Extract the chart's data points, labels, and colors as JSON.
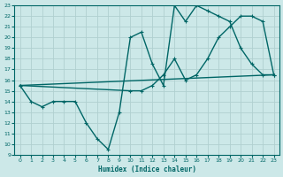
{
  "xlabel": "Humidex (Indice chaleur)",
  "background_color": "#cce8e8",
  "grid_color": "#b0d0d0",
  "line_color": "#006666",
  "xlim": [
    -0.5,
    23.5
  ],
  "ylim": [
    9,
    23
  ],
  "xticks": [
    0,
    1,
    2,
    3,
    4,
    5,
    6,
    7,
    8,
    9,
    10,
    11,
    12,
    13,
    14,
    15,
    16,
    17,
    18,
    19,
    20,
    21,
    22,
    23
  ],
  "yticks": [
    9,
    10,
    11,
    12,
    13,
    14,
    15,
    16,
    17,
    18,
    19,
    20,
    21,
    22,
    23
  ],
  "line1_x": [
    0,
    1,
    2,
    3,
    4,
    5,
    6,
    7,
    8,
    9,
    10,
    11,
    12,
    13,
    14,
    15,
    16,
    17,
    18,
    19,
    20,
    21,
    22,
    23
  ],
  "line1_y": [
    15.5,
    14,
    13.5,
    14,
    14,
    14,
    12,
    10.5,
    9.5,
    13,
    20,
    20.5,
    17.5,
    15.5,
    23,
    21.5,
    23,
    22.5,
    22,
    21.5,
    19,
    17.5,
    16.5,
    16.5
  ],
  "line2_x": [
    0,
    23
  ],
  "line2_y": [
    15.5,
    16.5
  ],
  "line3_x": [
    0,
    10,
    11,
    12,
    13,
    14,
    15,
    16,
    17,
    18,
    19,
    20,
    21,
    22,
    23
  ],
  "line3_y": [
    15.5,
    15,
    15,
    15.5,
    16.5,
    18,
    16,
    16.5,
    18,
    20,
    21,
    22,
    22,
    21.5,
    16.5
  ]
}
